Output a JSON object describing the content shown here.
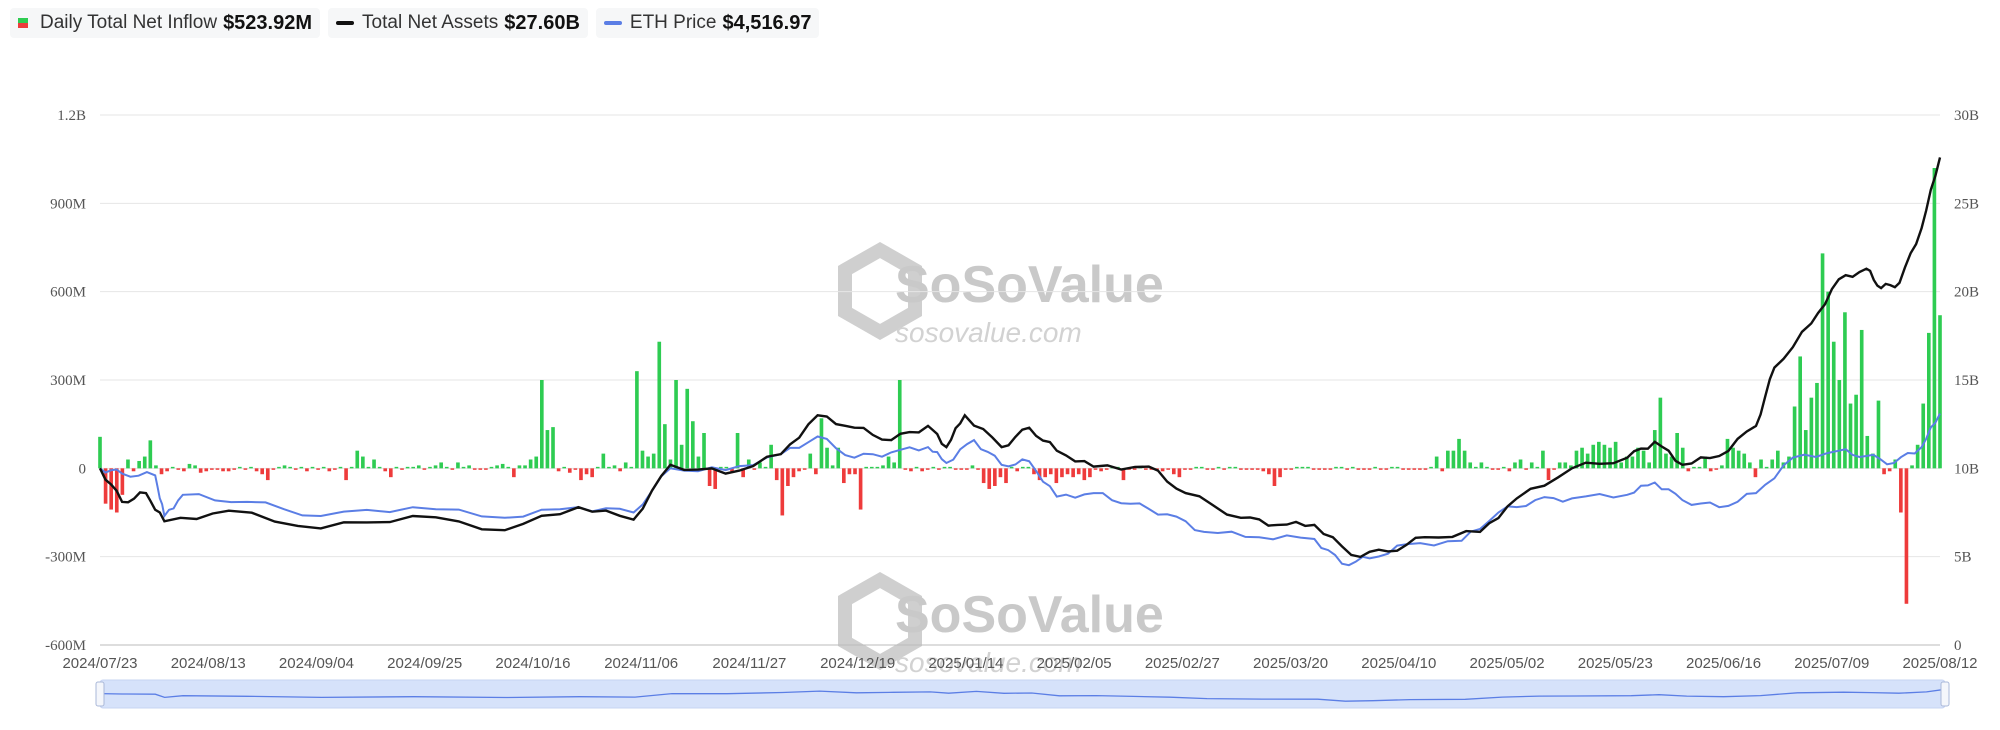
{
  "legend": {
    "inflow": {
      "label": "Daily Total Net Inflow",
      "value": "$523.92M"
    },
    "assets": {
      "label": "Total Net Assets",
      "value": "$27.60B"
    },
    "price": {
      "label": "ETH Price",
      "value": "$4,516.97"
    }
  },
  "watermark": {
    "brand": "SoSoValue",
    "site": "sosovalue.com"
  },
  "colors": {
    "positive": "#2ecc52",
    "negative": "#ee3b3b",
    "assets": "#111111",
    "price": "#5b7ee5",
    "grid": "#e6e6e6",
    "navigator_fill": "#d6e2fa",
    "navigator_line": "#5b7ee5"
  },
  "chart_data": {
    "type": "bar+line",
    "title": "",
    "left_axis": {
      "ticks": [
        "1.2B",
        "900M",
        "600M",
        "300M",
        "0",
        "-300M",
        "-600M"
      ],
      "ylim": [
        -600,
        1200
      ],
      "unit": "M"
    },
    "right_axis": {
      "ticks": [
        "30B",
        "25B",
        "20B",
        "15B",
        "10B",
        "5B",
        "0"
      ],
      "ylim": [
        0,
        30
      ],
      "unit": "B"
    },
    "x_ticks": [
      "2024/07/23",
      "2024/08/13",
      "2024/09/04",
      "2024/09/25",
      "2024/10/16",
      "2024/11/06",
      "2024/11/27",
      "2024/12/19",
      "2025/01/14",
      "2025/02/05",
      "2025/02/27",
      "2025/03/20",
      "2025/04/10",
      "2025/05/02",
      "2025/05/23",
      "2025/06/16",
      "2025/07/09",
      "2025/08/12"
    ],
    "grid": true,
    "legend_position": "top-left",
    "series": [
      {
        "name": "Daily Total Net Inflow",
        "type": "bar",
        "unit": "M",
        "values": [
          107,
          -120,
          -140,
          -150,
          -90,
          30,
          -10,
          25,
          40,
          95,
          10,
          -20,
          -10,
          5,
          -5,
          -10,
          15,
          10,
          -15,
          -10,
          -5,
          -5,
          -10,
          -10,
          -5,
          5,
          -5,
          5,
          -10,
          -20,
          -40,
          -5,
          5,
          10,
          5,
          -5,
          5,
          -10,
          5,
          -5,
          5,
          -10,
          -5,
          5,
          -40,
          5,
          60,
          40,
          5,
          30,
          5,
          -10,
          -30,
          5,
          -5,
          5,
          5,
          10,
          -5,
          5,
          10,
          20,
          5,
          -5,
          20,
          5,
          10,
          -5,
          -5,
          -5,
          5,
          10,
          15,
          5,
          -30,
          10,
          10,
          30,
          40,
          300,
          130,
          140,
          -10,
          5,
          -15,
          -5,
          -40,
          -20,
          -30,
          5,
          50,
          5,
          10,
          -10,
          20,
          5,
          330,
          60,
          40,
          50,
          430,
          150,
          30,
          300,
          80,
          270,
          160,
          40,
          120,
          -60,
          -70,
          5,
          5,
          -10,
          120,
          -30,
          30,
          -5,
          20,
          5,
          80,
          -40,
          -160,
          -60,
          -30,
          -10,
          -5,
          50,
          -20,
          170,
          70,
          10,
          70,
          -50,
          -20,
          -20,
          -140,
          5,
          5,
          5,
          10,
          40,
          20,
          300,
          -5,
          -10,
          5,
          -10,
          -5,
          5,
          -5,
          5,
          5,
          -5,
          -5,
          -5,
          10,
          -5,
          -50,
          -70,
          -60,
          -30,
          -50,
          5,
          -10,
          5,
          5,
          -20,
          -40,
          -30,
          -20,
          -50,
          -30,
          -20,
          -30,
          -20,
          -40,
          -30,
          -5,
          -10,
          -5,
          5,
          5,
          -40,
          -5,
          -5,
          5,
          -5,
          -5,
          -5,
          -10,
          -5,
          -20,
          -30,
          -5,
          -5,
          5,
          5,
          -5,
          -5,
          5,
          -5,
          5,
          5,
          -5,
          -5,
          -5,
          -5,
          -10,
          -20,
          -60,
          -30,
          -5,
          -5,
          5,
          5,
          5,
          -5,
          -5,
          -5,
          -5,
          5,
          5,
          -5,
          5,
          -5,
          -5,
          -5,
          5,
          -5,
          -5,
          5,
          5,
          -5,
          -5,
          -5,
          -5,
          -5,
          5,
          40,
          -10,
          60,
          60,
          100,
          60,
          20,
          5,
          20,
          5,
          -5,
          -5,
          5,
          -10,
          20,
          30,
          -5,
          20,
          5,
          60,
          -40,
          -5,
          20,
          20,
          10,
          60,
          70,
          50,
          80,
          90,
          80,
          70,
          90,
          20,
          40,
          40,
          70,
          60,
          20,
          130,
          240,
          50,
          40,
          120,
          70,
          -10,
          5,
          5,
          40,
          -10,
          -5,
          10,
          100,
          70,
          60,
          50,
          20,
          -30,
          30,
          5,
          30,
          60,
          20,
          40,
          210,
          380,
          130,
          240,
          290,
          730,
          600,
          430,
          300,
          530,
          220,
          250,
          470,
          110,
          50,
          230,
          -20,
          -10,
          30,
          -150,
          -460,
          10,
          80,
          220,
          460,
          1020,
          520
        ]
      },
      {
        "name": "Total Net Assets",
        "type": "line",
        "unit": "B"
      },
      {
        "name": "ETH Price",
        "type": "line",
        "unit": "USD"
      }
    ]
  }
}
